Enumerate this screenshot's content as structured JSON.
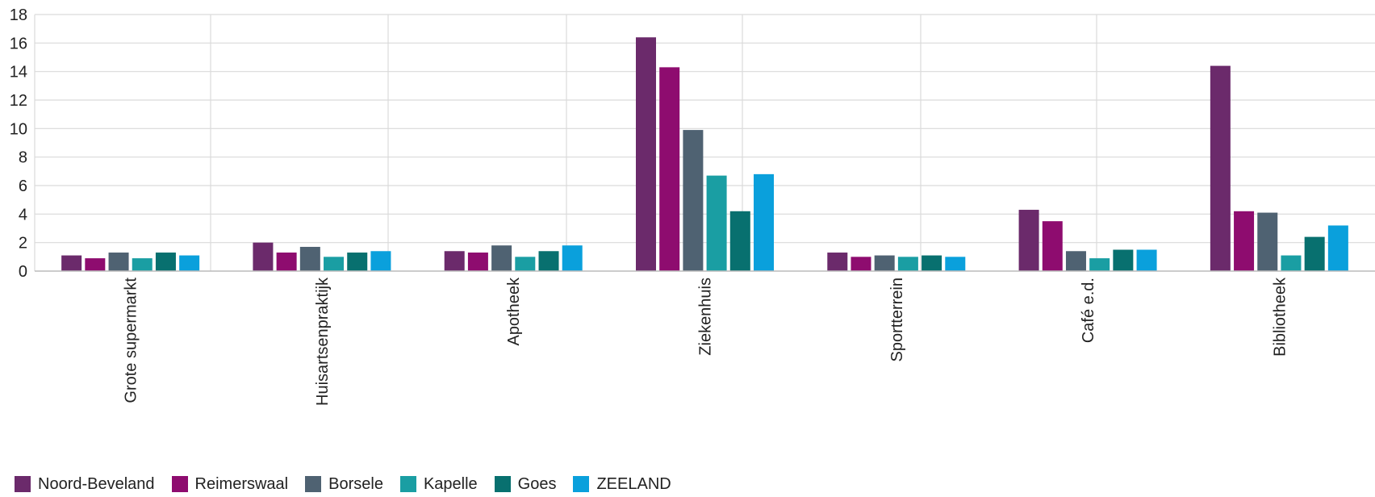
{
  "chart_data": {
    "type": "bar",
    "title": "",
    "xlabel": "",
    "ylabel": "",
    "ylim": [
      0,
      18
    ],
    "yticks": [
      0,
      2,
      4,
      6,
      8,
      10,
      12,
      14,
      16,
      18
    ],
    "grid": true,
    "legend_position": "bottom-left",
    "categories": [
      "Grote supermarkt",
      "Huisartsenpraktijk",
      "Apotheek",
      "Ziekenhuis",
      "Sportterrein",
      "Café e.d.",
      "Bibliotheek"
    ],
    "series": [
      {
        "name": "Noord-Beveland",
        "color": "#6b2a6b",
        "values": [
          1.1,
          2.0,
          1.4,
          16.4,
          1.3,
          4.3,
          14.4
        ]
      },
      {
        "name": "Reimerswaal",
        "color": "#8e0c6f",
        "values": [
          0.9,
          1.3,
          1.3,
          14.3,
          1.0,
          3.5,
          4.2
        ]
      },
      {
        "name": "Borsele",
        "color": "#4f6272",
        "values": [
          1.3,
          1.7,
          1.8,
          9.9,
          1.1,
          1.4,
          4.1
        ]
      },
      {
        "name": "Kapelle",
        "color": "#1a9ea3",
        "values": [
          0.9,
          1.0,
          1.0,
          6.7,
          1.0,
          0.9,
          1.1
        ]
      },
      {
        "name": "Goes",
        "color": "#08706f",
        "values": [
          1.3,
          1.3,
          1.4,
          4.2,
          1.1,
          1.5,
          2.4
        ]
      },
      {
        "name": "ZEELAND",
        "color": "#0aa0dc",
        "values": [
          1.1,
          1.4,
          1.8,
          6.8,
          1.0,
          1.5,
          3.2
        ]
      }
    ]
  }
}
